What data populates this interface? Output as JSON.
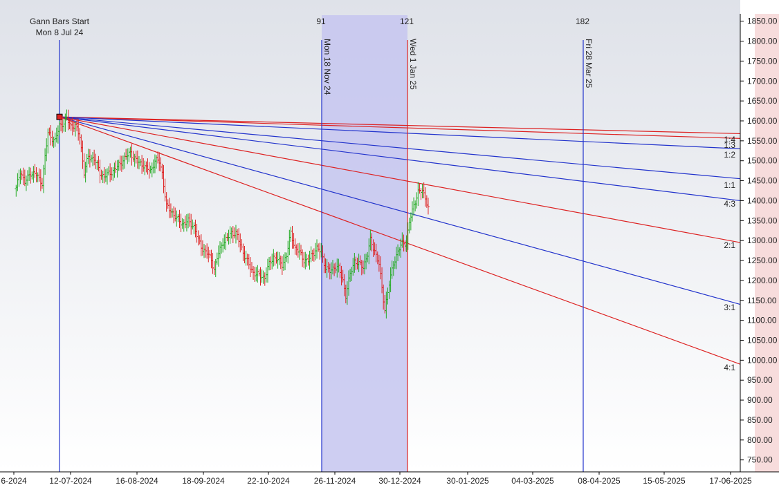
{
  "chart_data": {
    "type": "candlestick-gann",
    "x_ticks": [
      "6-2024",
      "12-07-2024",
      "16-08-2024",
      "18-09-2024",
      "22-10-2024",
      "26-11-2024",
      "30-12-2024",
      "30-01-2025",
      "04-03-2025",
      "08-04-2025",
      "15-05-2025",
      "17-06-2025"
    ],
    "y_ticks": [
      "750.00",
      "800.00",
      "850.00",
      "900.00",
      "950.00",
      "1000.00",
      "1050.00",
      "1100.00",
      "1150.00",
      "1200.00",
      "1250.00",
      "1300.00",
      "1350.00",
      "1400.00",
      "1450.00",
      "1500.00",
      "1550.00",
      "1600.00",
      "1650.00",
      "1700.00",
      "1750.00",
      "1800.00",
      "1850.00"
    ],
    "ylim": [
      720,
      1865
    ],
    "gann_start": {
      "title": "Gann Bars Start",
      "date": "Mon 8 Jul 24",
      "price": 1610
    },
    "markers": [
      {
        "count": "91",
        "date": "Mon 18 Nov 24",
        "color": "#2233cc"
      },
      {
        "count": "121",
        "date": "Wed 1 Jan 25",
        "color": "#dd2222"
      },
      {
        "count": "182",
        "date": "Fri 28 Mar 25",
        "color": "#2233cc"
      }
    ],
    "fan_lines": [
      {
        "label": "1:4",
        "end_price": 1568,
        "color": "#dd2222"
      },
      {
        "label": "1:3",
        "end_price": 1556,
        "color": "#dd2222"
      },
      {
        "label": "1:2",
        "end_price": 1530,
        "color": "#2233cc"
      },
      {
        "label": "1:1",
        "end_price": 1455,
        "color": "#2233cc"
      },
      {
        "label": "4:3",
        "end_price": 1400,
        "color": "#2233cc"
      },
      {
        "label": "2:1",
        "end_price": 1295,
        "color": "#dd2222"
      },
      {
        "label": "3:1",
        "end_price": 1140,
        "color": "#2233cc"
      },
      {
        "label": "4:1",
        "end_price": 990,
        "color": "#dd2222"
      }
    ],
    "price_path": [
      [
        0,
        1430
      ],
      [
        3,
        1475
      ],
      [
        6,
        1445
      ],
      [
        10,
        1470
      ],
      [
        14,
        1465
      ],
      [
        18,
        1445
      ],
      [
        22,
        1570
      ],
      [
        27,
        1548
      ],
      [
        30,
        1590
      ],
      [
        33,
        1595
      ],
      [
        35,
        1605
      ],
      [
        38,
        1588
      ],
      [
        41,
        1585
      ],
      [
        44,
        1562
      ],
      [
        47,
        1470
      ],
      [
        50,
        1510
      ],
      [
        54,
        1505
      ],
      [
        58,
        1470
      ],
      [
        61,
        1460
      ],
      [
        65,
        1470
      ],
      [
        69,
        1480
      ],
      [
        73,
        1498
      ],
      [
        76,
        1510
      ],
      [
        79,
        1520
      ],
      [
        82,
        1505
      ],
      [
        85,
        1495
      ],
      [
        88,
        1490
      ],
      [
        90,
        1480
      ],
      [
        93,
        1475
      ],
      [
        96,
        1500
      ],
      [
        99,
        1498
      ],
      [
        101,
        1470
      ],
      [
        104,
        1385
      ],
      [
        107,
        1375
      ],
      [
        111,
        1355
      ],
      [
        115,
        1342
      ],
      [
        119,
        1348
      ],
      [
        123,
        1335
      ],
      [
        126,
        1300
      ],
      [
        129,
        1280
      ],
      [
        132,
        1268
      ],
      [
        135,
        1252
      ],
      [
        137,
        1228
      ],
      [
        140,
        1268
      ],
      [
        143,
        1297
      ],
      [
        146,
        1305
      ],
      [
        149,
        1320
      ],
      [
        152,
        1318
      ],
      [
        155,
        1290
      ],
      [
        158,
        1262
      ],
      [
        161,
        1238
      ],
      [
        164,
        1220
      ],
      [
        168,
        1212
      ],
      [
        172,
        1208
      ],
      [
        175,
        1240
      ],
      [
        178,
        1260
      ],
      [
        181,
        1250
      ],
      [
        184,
        1240
      ],
      [
        187,
        1262
      ],
      [
        190,
        1320
      ],
      [
        193,
        1280
      ],
      [
        196,
        1270
      ],
      [
        199,
        1252
      ],
      [
        202,
        1248
      ],
      [
        205,
        1268
      ],
      [
        208,
        1280
      ],
      [
        211,
        1270
      ],
      [
        214,
        1232
      ],
      [
        217,
        1222
      ],
      [
        220,
        1235
      ],
      [
        223,
        1230
      ],
      [
        226,
        1200
      ],
      [
        228,
        1162
      ],
      [
        231,
        1215
      ],
      [
        234,
        1250
      ],
      [
        237,
        1240
      ],
      [
        240,
        1235
      ],
      [
        243,
        1265
      ],
      [
        245,
        1300
      ],
      [
        248,
        1275
      ],
      [
        251,
        1240
      ],
      [
        253,
        1180
      ],
      [
        255,
        1128
      ],
      [
        258,
        1190
      ],
      [
        261,
        1245
      ],
      [
        264,
        1270
      ],
      [
        267,
        1295
      ],
      [
        270,
        1295
      ],
      [
        272,
        1345
      ],
      [
        275,
        1390
      ],
      [
        278,
        1420
      ],
      [
        281,
        1425
      ],
      [
        283,
        1410
      ],
      [
        285,
        1380
      ]
    ]
  }
}
